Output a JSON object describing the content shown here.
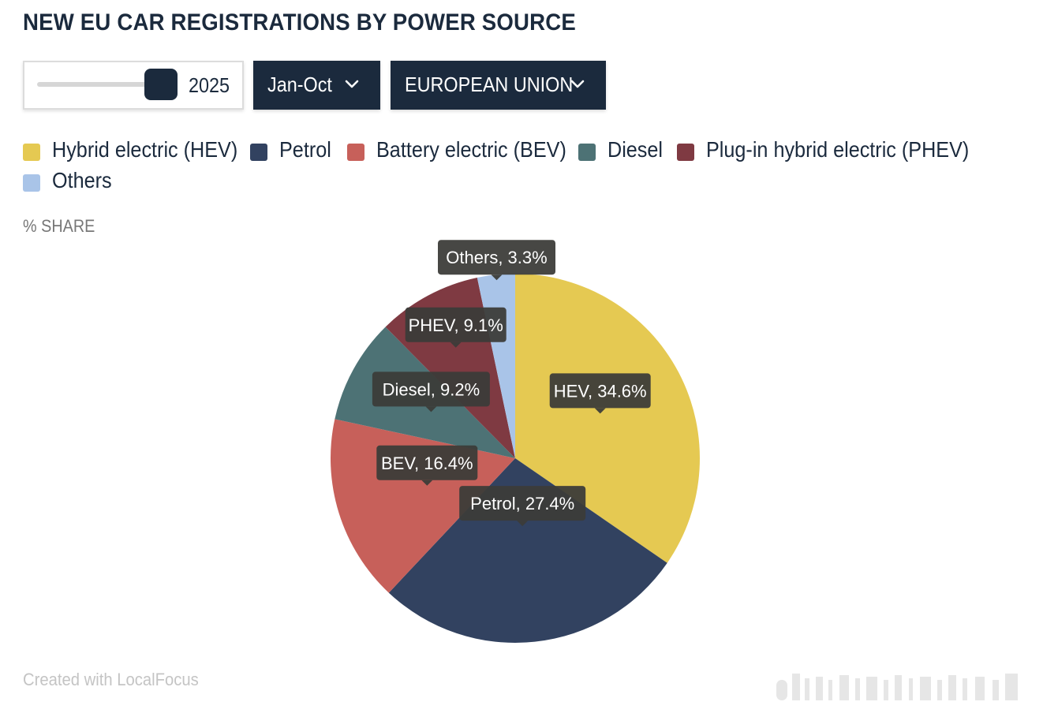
{
  "header": {
    "title": "NEW EU CAR REGISTRATIONS BY POWER SOURCE"
  },
  "controls": {
    "year_slider": {
      "value": "2025"
    },
    "period_dropdown": {
      "label": "Jan-Oct"
    },
    "region_dropdown": {
      "label": "EUROPEAN UNION"
    }
  },
  "footer": {
    "credit": "Created with LocalFocus"
  },
  "chart_data": {
    "type": "pie",
    "unit_label": "% SHARE",
    "legend_position": "top",
    "slices": [
      {
        "name": "Hybrid electric (HEV)",
        "short": "HEV",
        "value": 34.6,
        "label": "HEV, 34.6%",
        "color": "#e5c952"
      },
      {
        "name": "Petrol",
        "short": "Petrol",
        "value": 27.4,
        "label": "Petrol, 27.4%",
        "color": "#324260"
      },
      {
        "name": "Battery electric (BEV)",
        "short": "BEV",
        "value": 16.4,
        "label": "BEV, 16.4%",
        "color": "#c7605a"
      },
      {
        "name": "Diesel",
        "short": "Diesel",
        "value": 9.2,
        "label": "Diesel, 9.2%",
        "color": "#4d7275"
      },
      {
        "name": "Plug-in hybrid electric (PHEV)",
        "short": "PHEV",
        "value": 9.1,
        "label": "PHEV, 9.1%",
        "color": "#7f3a42"
      },
      {
        "name": "Others",
        "short": "Others",
        "value": 3.3,
        "label": "Others, 3.3%",
        "color": "#a9c4e8"
      }
    ]
  }
}
